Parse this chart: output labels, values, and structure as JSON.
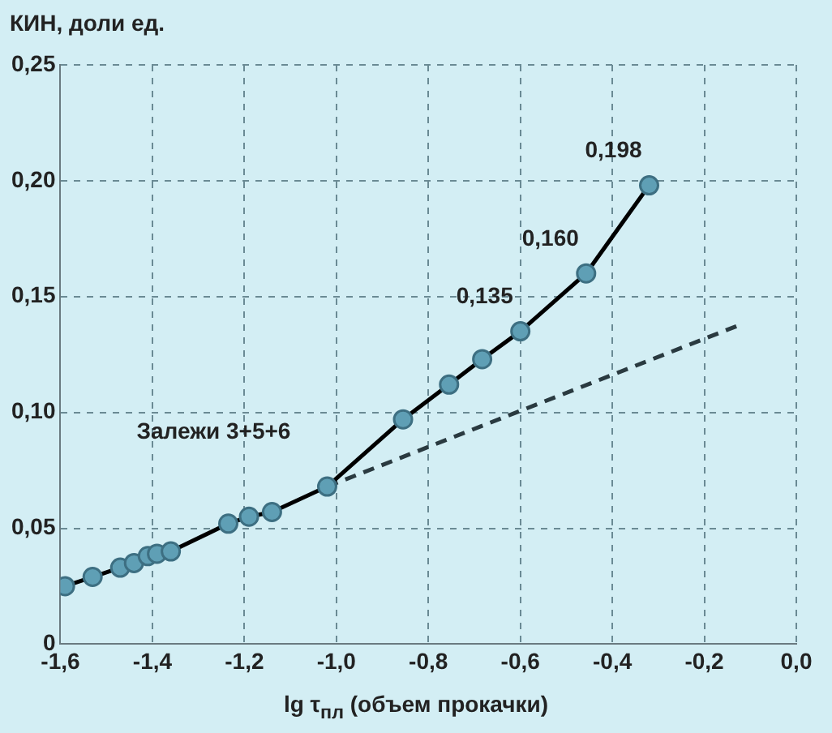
{
  "chart_data": {
    "type": "line",
    "xlabel": "lg τ$_{пл}$ (объем прокачки)",
    "ylabel": "КИН, доли ед.",
    "xlim": [
      -1.6,
      0.0
    ],
    "xticks": [
      {
        "value": -1.6,
        "label": "-1,6"
      },
      {
        "value": -1.4,
        "label": "-1,4"
      },
      {
        "value": -1.2,
        "label": "-1,2"
      },
      {
        "value": -1.0,
        "label": "-1,0"
      },
      {
        "value": -0.8,
        "label": "-0,8"
      },
      {
        "value": -0.6,
        "label": "-0,6"
      },
      {
        "value": -0.4,
        "label": "-0,4"
      },
      {
        "value": -0.2,
        "label": "-0,2"
      },
      {
        "value": 0.0,
        "label": "0,0"
      }
    ],
    "ylim": [
      0,
      0.25
    ],
    "yticks": [
      {
        "value": 0,
        "label": "0"
      },
      {
        "value": 0.05,
        "label": "0,05"
      },
      {
        "value": 0.1,
        "label": "0,10"
      },
      {
        "value": 0.15,
        "label": "0,15"
      },
      {
        "value": 0.2,
        "label": "0,20"
      },
      {
        "value": 0.25,
        "label": "0,25"
      }
    ],
    "grid": true,
    "legend": false,
    "series": [
      {
        "name": "Залежи 3+5+6",
        "color": "#000000",
        "marker": "circle",
        "line_style": "solid",
        "x": [
          -1.59,
          -1.53,
          -1.47,
          -1.44,
          -1.41,
          -1.39,
          -1.36,
          -1.235,
          -1.19,
          -1.14,
          -1.02,
          -0.855,
          -0.755,
          -0.683,
          -0.6,
          -0.457,
          -0.32
        ],
        "values": [
          0.025,
          0.029,
          0.033,
          0.035,
          0.038,
          0.039,
          0.04,
          0.052,
          0.055,
          0.057,
          0.068,
          0.097,
          0.112,
          0.123,
          0.135,
          0.16,
          0.198
        ],
        "value_labels": [
          null,
          null,
          null,
          null,
          null,
          null,
          null,
          null,
          null,
          null,
          null,
          null,
          null,
          null,
          "0,135",
          "0,160",
          "0,198"
        ]
      },
      {
        "color": "#2a3a40",
        "marker": "none",
        "line_style": "dashed",
        "x": [
          -1.02,
          -0.12
        ],
        "values": [
          0.068,
          0.138
        ]
      }
    ]
  }
}
